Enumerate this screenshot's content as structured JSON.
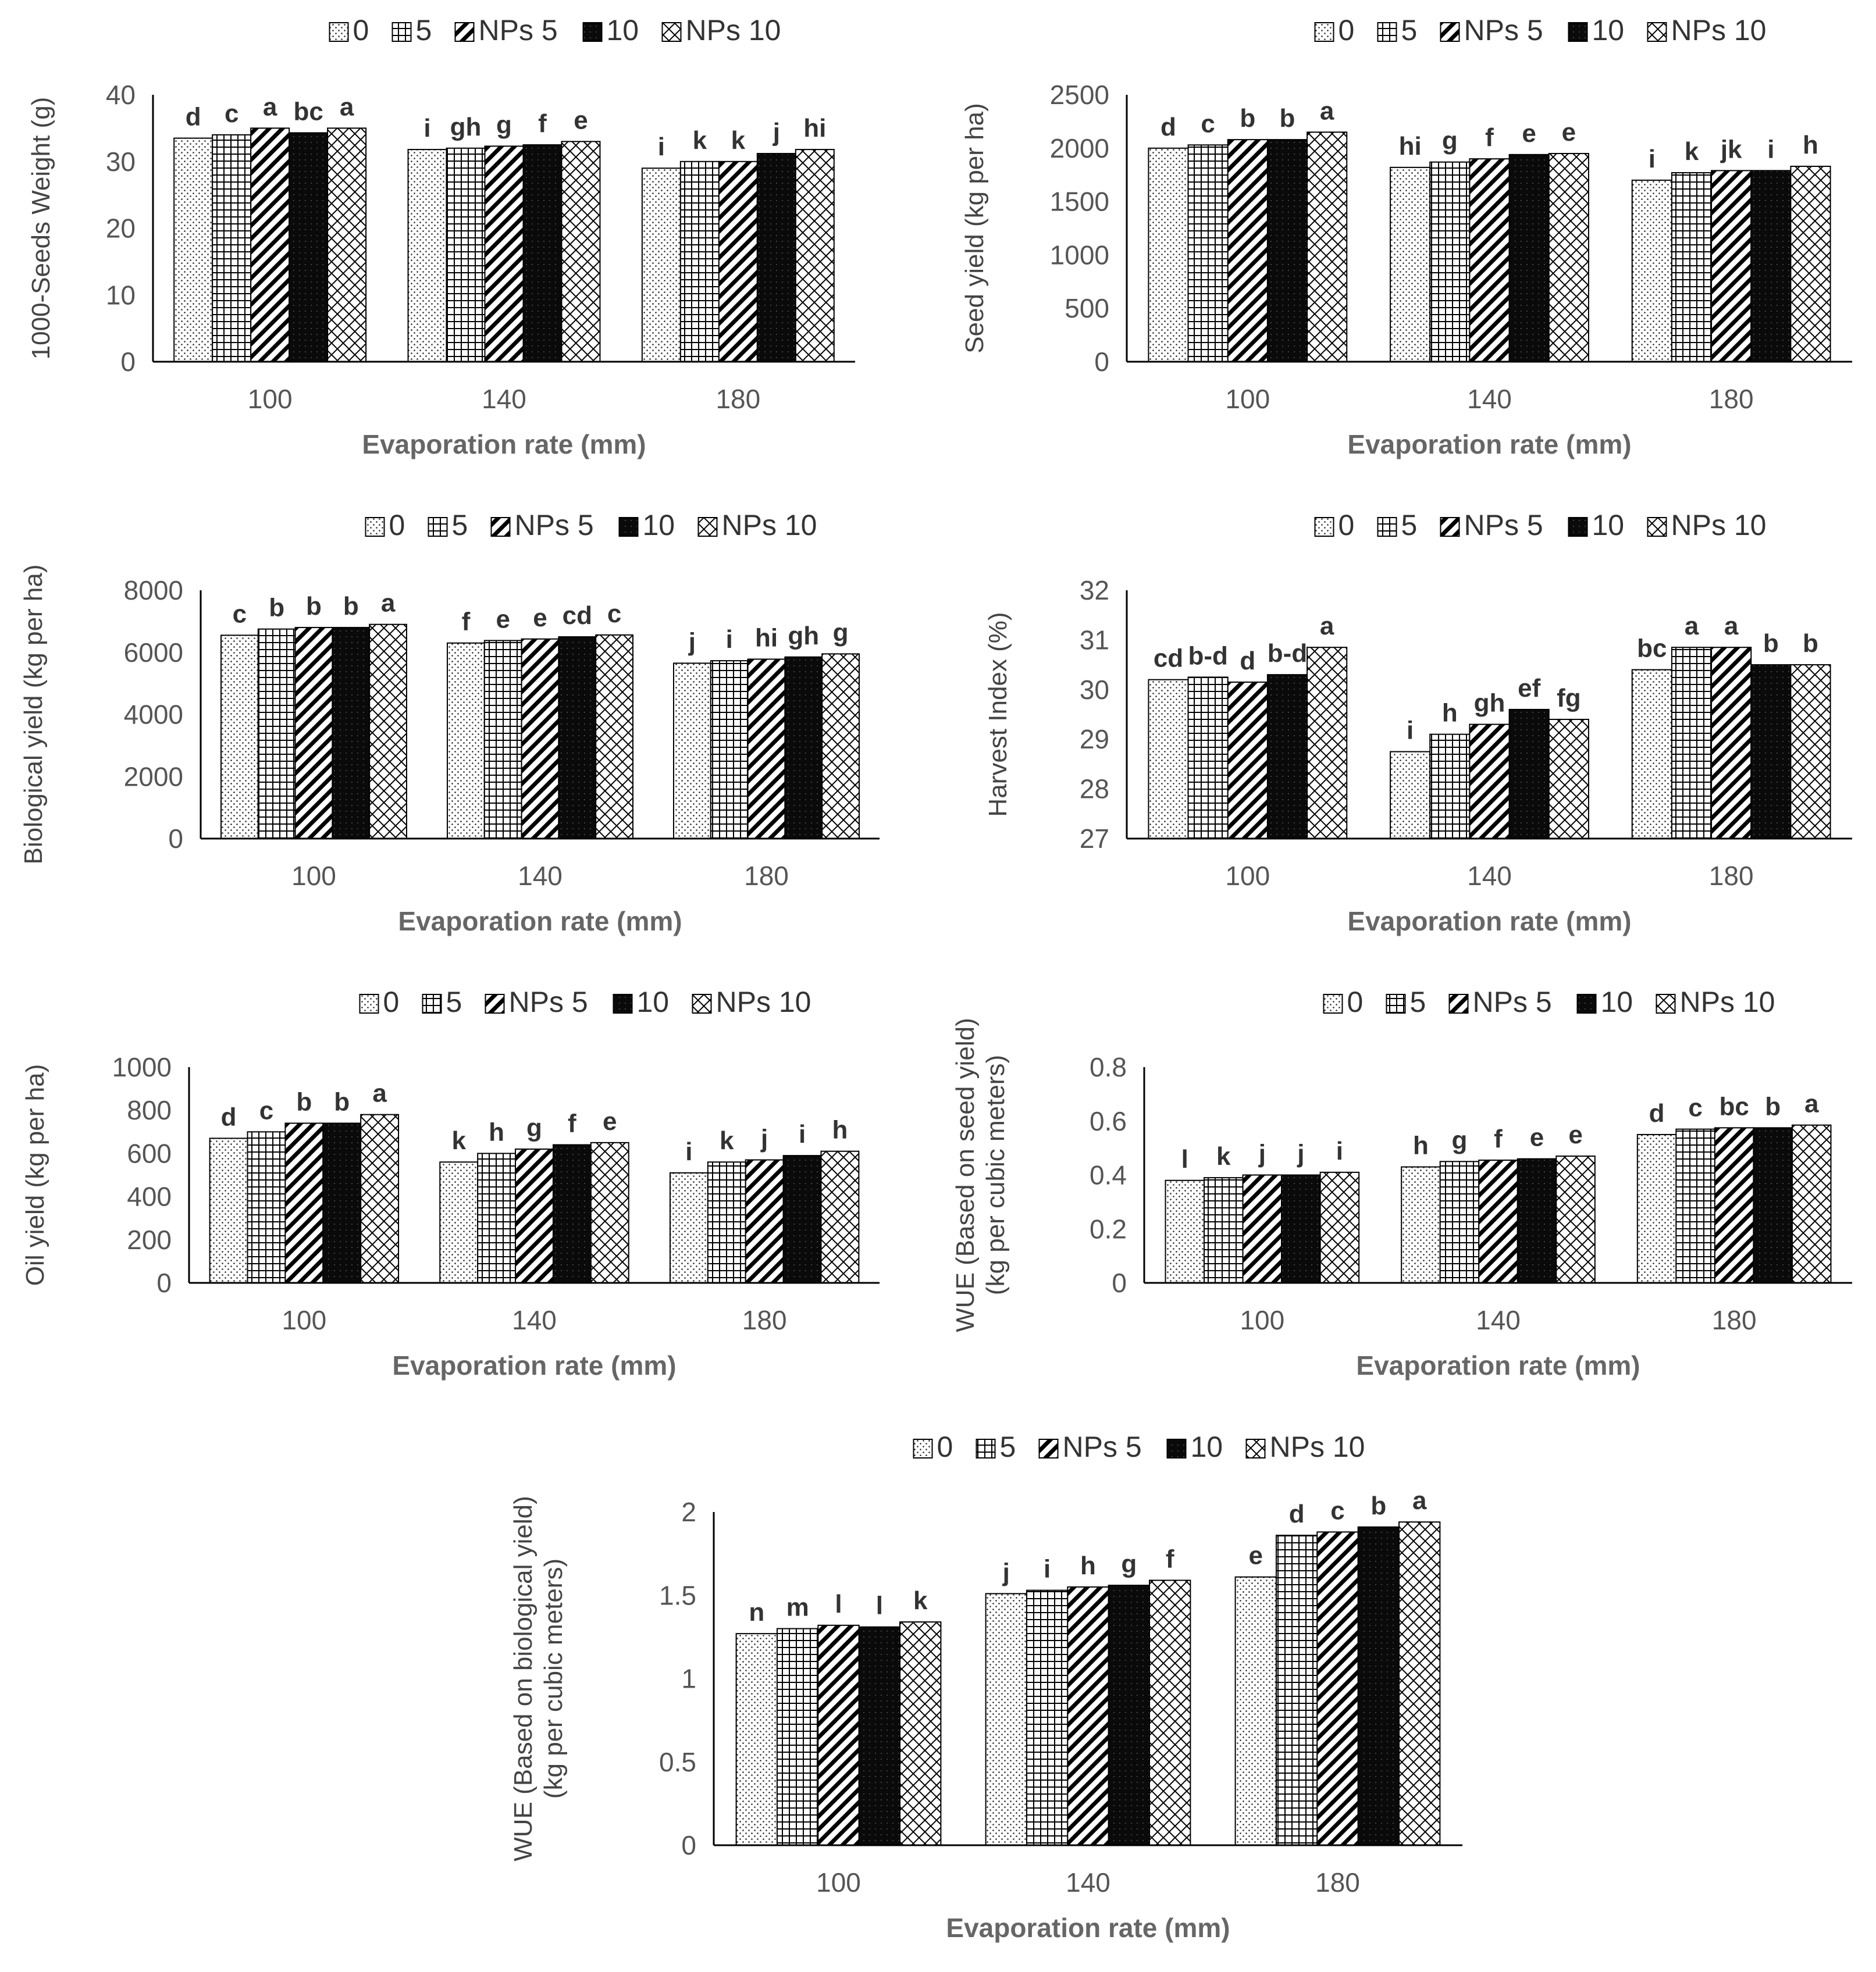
{
  "series_names": [
    "0",
    "5",
    "NPs 5",
    "10",
    "NPs 10"
  ],
  "series_patterns": [
    "dots",
    "grid",
    "diag",
    "solid",
    "zigzag"
  ],
  "colors": {
    "bar_fill": "#ffffff",
    "bar_stroke": "#000000",
    "axis": "#000000",
    "text": "#555555"
  },
  "chart_data": [
    {
      "type": "bar",
      "title": "",
      "xlabel": "Evaporation rate (mm)",
      "ylabel": [
        "1000-Seeds Weight (g)"
      ],
      "categories": [
        "100",
        "140",
        "180"
      ],
      "ylim": [
        0,
        40
      ],
      "yticks": [
        "0",
        "10",
        "20",
        "30",
        "40"
      ],
      "series": [
        {
          "name": "0",
          "values": [
            33.5,
            31.8,
            29.0
          ]
        },
        {
          "name": "5",
          "values": [
            34.0,
            32.0,
            30.0
          ]
        },
        {
          "name": "NPs 5",
          "values": [
            35.0,
            32.3,
            30.0
          ]
        },
        {
          "name": "10",
          "values": [
            34.3,
            32.5,
            31.2
          ]
        },
        {
          "name": "NPs 10",
          "values": [
            35.0,
            33.0,
            31.8
          ]
        }
      ],
      "letters": [
        [
          "d",
          "c",
          "a",
          "bc",
          "a"
        ],
        [
          "i",
          "gh",
          "g",
          "f",
          "e"
        ],
        [
          "i",
          "k",
          "k",
          "j",
          "hi"
        ]
      ]
    },
    {
      "type": "bar",
      "title": "",
      "xlabel": "Evaporation rate (mm)",
      "ylabel": [
        "Seed yield (kg per ha)"
      ],
      "categories": [
        "100",
        "140",
        "180"
      ],
      "ylim": [
        0,
        2500
      ],
      "yticks": [
        "0",
        "500",
        "1000",
        "1500",
        "2000",
        "2500"
      ],
      "series": [
        {
          "name": "0",
          "values": [
            2000,
            1820,
            1700
          ]
        },
        {
          "name": "5",
          "values": [
            2030,
            1870,
            1770
          ]
        },
        {
          "name": "NPs 5",
          "values": [
            2080,
            1900,
            1790
          ]
        },
        {
          "name": "10",
          "values": [
            2080,
            1940,
            1790
          ]
        },
        {
          "name": "NPs 10",
          "values": [
            2150,
            1950,
            1830
          ]
        }
      ],
      "letters": [
        [
          "d",
          "c",
          "b",
          "b",
          "a"
        ],
        [
          "hi",
          "g",
          "f",
          "e",
          "e"
        ],
        [
          "i",
          "k",
          "jk",
          "i",
          "h"
        ]
      ]
    },
    {
      "type": "bar",
      "title": "",
      "xlabel": "Evaporation rate (mm)",
      "ylabel": [
        "Biological yield (kg per ha)"
      ],
      "categories": [
        "100",
        "140",
        "180"
      ],
      "ylim": [
        0,
        8000
      ],
      "yticks": [
        "0",
        "2000",
        "4000",
        "6000",
        "8000"
      ],
      "series": [
        {
          "name": "0",
          "values": [
            6550,
            6300,
            5650
          ]
        },
        {
          "name": "5",
          "values": [
            6750,
            6380,
            5730
          ]
        },
        {
          "name": "NPs 5",
          "values": [
            6800,
            6430,
            5780
          ]
        },
        {
          "name": "10",
          "values": [
            6800,
            6500,
            5850
          ]
        },
        {
          "name": "NPs 10",
          "values": [
            6900,
            6560,
            5950
          ]
        }
      ],
      "letters": [
        [
          "c",
          "b",
          "b",
          "b",
          "a"
        ],
        [
          "f",
          "e",
          "e",
          "cd",
          "c"
        ],
        [
          "j",
          "i",
          "hi",
          "gh",
          "g"
        ]
      ]
    },
    {
      "type": "bar",
      "title": "",
      "xlabel": "Evaporation rate (mm)",
      "ylabel": [
        "Harvest Index (%)"
      ],
      "categories": [
        "100",
        "140",
        "180"
      ],
      "ylim": [
        27,
        32
      ],
      "yticks": [
        "27",
        "28",
        "29",
        "30",
        "31",
        "32"
      ],
      "series": [
        {
          "name": "0",
          "values": [
            30.2,
            28.75,
            30.4
          ]
        },
        {
          "name": "5",
          "values": [
            30.25,
            29.1,
            30.85
          ]
        },
        {
          "name": "NPs 5",
          "values": [
            30.15,
            29.3,
            30.85
          ]
        },
        {
          "name": "10",
          "values": [
            30.3,
            29.6,
            30.5
          ]
        },
        {
          "name": "NPs 10",
          "values": [
            30.85,
            29.4,
            30.5
          ]
        }
      ],
      "letters": [
        [
          "cd",
          "b-d",
          "d",
          "b-d",
          "a"
        ],
        [
          "i",
          "h",
          "gh",
          "ef",
          "fg"
        ],
        [
          "bc",
          "a",
          "a",
          "b",
          "b"
        ]
      ]
    },
    {
      "type": "bar",
      "title": "",
      "xlabel": "Evaporation rate (mm)",
      "ylabel": [
        "Oil yield (kg per ha)"
      ],
      "categories": [
        "100",
        "140",
        "180"
      ],
      "ylim": [
        0,
        1000
      ],
      "yticks": [
        "0",
        "200",
        "400",
        "600",
        "800",
        "1000"
      ],
      "series": [
        {
          "name": "0",
          "values": [
            670,
            560,
            510
          ]
        },
        {
          "name": "5",
          "values": [
            700,
            600,
            560
          ]
        },
        {
          "name": "NPs 5",
          "values": [
            740,
            620,
            570
          ]
        },
        {
          "name": "10",
          "values": [
            740,
            640,
            590
          ]
        },
        {
          "name": "NPs 10",
          "values": [
            780,
            650,
            610
          ]
        }
      ],
      "letters": [
        [
          "d",
          "c",
          "b",
          "b",
          "a"
        ],
        [
          "k",
          "h",
          "g",
          "f",
          "e"
        ],
        [
          "i",
          "k",
          "j",
          "i",
          "h"
        ]
      ]
    },
    {
      "type": "bar",
      "title": "",
      "xlabel": "Evaporation rate (mm)",
      "ylabel": [
        "WUE (Based on seed yield)",
        "(kg per cubic meters)"
      ],
      "categories": [
        "100",
        "140",
        "180"
      ],
      "ylim": [
        0,
        0.8
      ],
      "yticks": [
        "0",
        "0.2",
        "0.4",
        "0.6",
        "0.8"
      ],
      "series": [
        {
          "name": "0",
          "values": [
            0.38,
            0.43,
            0.55
          ]
        },
        {
          "name": "5",
          "values": [
            0.39,
            0.45,
            0.57
          ]
        },
        {
          "name": "NPs 5",
          "values": [
            0.4,
            0.455,
            0.575
          ]
        },
        {
          "name": "10",
          "values": [
            0.4,
            0.46,
            0.575
          ]
        },
        {
          "name": "NPs 10",
          "values": [
            0.41,
            0.47,
            0.585
          ]
        }
      ],
      "letters": [
        [
          "l",
          "k",
          "j",
          "j",
          "i"
        ],
        [
          "h",
          "g",
          "f",
          "e",
          "e"
        ],
        [
          "d",
          "c",
          "bc",
          "b",
          "a"
        ]
      ]
    },
    {
      "type": "bar",
      "title": "",
      "xlabel": "Evaporation rate (mm)",
      "ylabel": [
        "WUE (Based on biological yield)",
        "(kg per cubic meters)"
      ],
      "categories": [
        "100",
        "140",
        "180"
      ],
      "ylim": [
        0,
        2
      ],
      "yticks": [
        "0",
        "0.5",
        "1",
        "1.5",
        "2"
      ],
      "series": [
        {
          "name": "0",
          "values": [
            1.27,
            1.51,
            1.61
          ]
        },
        {
          "name": "5",
          "values": [
            1.3,
            1.53,
            1.86
          ]
        },
        {
          "name": "NPs 5",
          "values": [
            1.32,
            1.55,
            1.88
          ]
        },
        {
          "name": "10",
          "values": [
            1.31,
            1.56,
            1.91
          ]
        },
        {
          "name": "NPs 10",
          "values": [
            1.34,
            1.59,
            1.94
          ]
        }
      ],
      "letters": [
        [
          "n",
          "m",
          "l",
          "l",
          "k"
        ],
        [
          "j",
          "i",
          "h",
          "g",
          "f"
        ],
        [
          "e",
          "d",
          "c",
          "b",
          "a"
        ]
      ]
    }
  ]
}
